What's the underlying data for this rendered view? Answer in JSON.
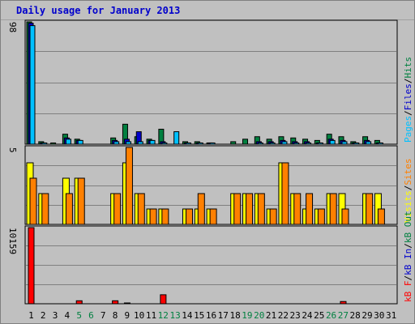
{
  "page": {
    "title": "Daily usage for January 2013"
  },
  "colors": {
    "pages": "#00c0ff",
    "files": "#0000cc",
    "hits": "#008040",
    "visits": "#ffff00",
    "sites": "#ff8000",
    "kb_out": "#008040",
    "kb_in": "#0000cc",
    "kb_f": "#ff0000",
    "panel_bg": "#c0c0c0",
    "grid": "#808080",
    "weekend": "#008040"
  },
  "legends": {
    "top": [
      {
        "text": "Pages",
        "color": "#00c0ff"
      },
      {
        "text": "/",
        "color": "#000000"
      },
      {
        "text": "Files",
        "color": "#0000cc"
      },
      {
        "text": "/",
        "color": "#000000"
      },
      {
        "text": "Hits",
        "color": "#008040"
      }
    ],
    "middle": [
      {
        "text": "Visits",
        "color": "#ffff00"
      },
      {
        "text": "/",
        "color": "#000000"
      },
      {
        "text": "Sites",
        "color": "#ff8000"
      }
    ],
    "bottom": [
      {
        "text": "kB F",
        "color": "#ff0000"
      },
      {
        "text": "/",
        "color": "#000000"
      },
      {
        "text": "kB In",
        "color": "#0000cc"
      },
      {
        "text": "/",
        "color": "#000000"
      },
      {
        "text": "kB Out",
        "color": "#008040"
      }
    ]
  },
  "chart_data": [
    {
      "type": "bar",
      "title": "Daily usage for January 2013",
      "categories": [
        "1",
        "2",
        "3",
        "4",
        "5",
        "6",
        "7",
        "8",
        "9",
        "10",
        "11",
        "12",
        "13",
        "14",
        "15",
        "16",
        "17",
        "18",
        "19",
        "20",
        "21",
        "22",
        "23",
        "24",
        "25",
        "26",
        "27",
        "28",
        "29",
        "30",
        "31"
      ],
      "weekend_days": [
        "5",
        "6",
        "12",
        "13",
        "19",
        "20",
        "26",
        "27"
      ],
      "ylim": [
        0,
        98
      ],
      "ytick_label": "98",
      "grid": true,
      "series": [
        {
          "name": "Hits",
          "values": [
            98,
            2,
            1,
            8,
            4,
            0,
            0,
            5,
            16,
            6,
            4,
            12,
            0,
            2,
            2,
            1,
            0,
            2,
            4,
            6,
            4,
            6,
            5,
            4,
            3,
            8,
            6,
            2,
            6,
            3,
            0
          ]
        },
        {
          "name": "Files",
          "values": [
            97,
            1,
            0,
            5,
            3,
            0,
            0,
            3,
            4,
            10,
            3,
            2,
            0,
            1,
            1,
            1,
            0,
            0,
            0,
            2,
            2,
            3,
            2,
            2,
            1,
            4,
            3,
            1,
            3,
            1,
            0
          ]
        },
        {
          "name": "Pages",
          "values": [
            95,
            1,
            0,
            4,
            3,
            0,
            0,
            2,
            2,
            2,
            3,
            1,
            10,
            1,
            1,
            1,
            0,
            0,
            0,
            1,
            1,
            2,
            1,
            1,
            1,
            3,
            2,
            1,
            2,
            1,
            0
          ]
        }
      ]
    },
    {
      "type": "bar",
      "categories": [
        "1",
        "2",
        "3",
        "4",
        "5",
        "6",
        "7",
        "8",
        "9",
        "10",
        "11",
        "12",
        "13",
        "14",
        "15",
        "16",
        "17",
        "18",
        "19",
        "20",
        "21",
        "22",
        "23",
        "24",
        "25",
        "26",
        "27",
        "28",
        "29",
        "30",
        "31"
      ],
      "ylim": [
        0,
        5
      ],
      "ytick_label": "5",
      "grid": true,
      "series": [
        {
          "name": "Visits",
          "values": [
            4,
            2,
            0,
            3,
            3,
            0,
            0,
            2,
            4,
            2,
            1,
            1,
            0,
            1,
            1,
            1,
            0,
            2,
            2,
            2,
            1,
            4,
            2,
            1,
            1,
            2,
            2,
            0,
            2,
            2,
            0
          ]
        },
        {
          "name": "Sites",
          "values": [
            3,
            2,
            0,
            2,
            3,
            0,
            0,
            2,
            5,
            2,
            1,
            1,
            0,
            1,
            2,
            1,
            0,
            2,
            2,
            2,
            1,
            4,
            2,
            2,
            1,
            2,
            1,
            0,
            2,
            1,
            0
          ]
        }
      ]
    },
    {
      "type": "bar",
      "categories": [
        "1",
        "2",
        "3",
        "4",
        "5",
        "6",
        "7",
        "8",
        "9",
        "10",
        "11",
        "12",
        "13",
        "14",
        "15",
        "16",
        "17",
        "18",
        "19",
        "20",
        "21",
        "22",
        "23",
        "24",
        "25",
        "26",
        "27",
        "28",
        "29",
        "30",
        "31"
      ],
      "ylim": [
        0,
        10159
      ],
      "ytick_label": "10159",
      "grid": true,
      "series": [
        {
          "name": "kB F",
          "values": [
            10159,
            0,
            0,
            0,
            400,
            0,
            0,
            400,
            100,
            0,
            0,
            1200,
            0,
            0,
            0,
            0,
            0,
            0,
            0,
            0,
            0,
            0,
            0,
            0,
            0,
            0,
            300,
            0,
            0,
            0,
            0
          ]
        },
        {
          "name": "kB In",
          "values": [
            0,
            0,
            0,
            0,
            0,
            0,
            0,
            0,
            0,
            0,
            0,
            0,
            0,
            0,
            0,
            0,
            0,
            0,
            0,
            0,
            0,
            0,
            0,
            0,
            0,
            0,
            0,
            0,
            0,
            0,
            0
          ]
        },
        {
          "name": "kB Out",
          "values": [
            0,
            0,
            0,
            0,
            0,
            0,
            0,
            0,
            0,
            0,
            0,
            0,
            0,
            0,
            0,
            0,
            0,
            0,
            0,
            0,
            0,
            0,
            0,
            0,
            0,
            0,
            0,
            0,
            0,
            0,
            0
          ]
        }
      ]
    }
  ]
}
